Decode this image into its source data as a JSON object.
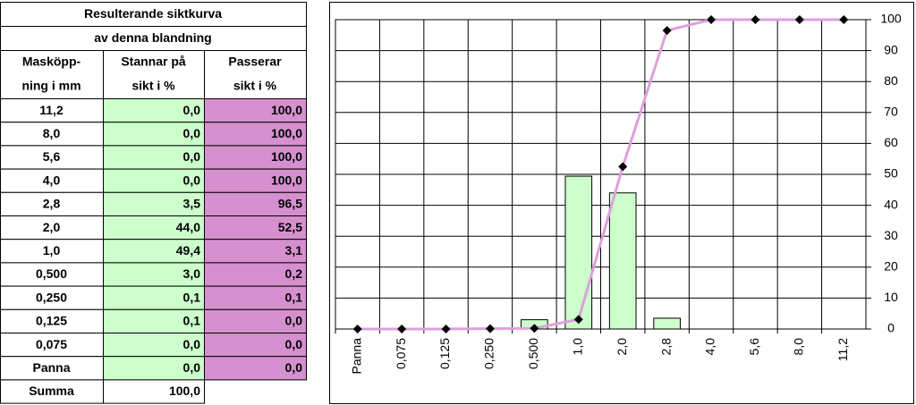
{
  "table": {
    "title": [
      "Resulterande siktkurva",
      "av denna blandning"
    ],
    "header": [
      [
        "Masköpp-",
        "Stannar på",
        "Passerar"
      ],
      [
        "ning i mm",
        "sikt i %",
        "sikt i %"
      ]
    ],
    "rows": [
      [
        "11,2",
        "0,0",
        "100,0"
      ],
      [
        "8,0",
        "0,0",
        "100,0"
      ],
      [
        "5,6",
        "0,0",
        "100,0"
      ],
      [
        "4,0",
        "0,0",
        "100,0"
      ],
      [
        "2,8",
        "3,5",
        "96,5"
      ],
      [
        "2,0",
        "44,0",
        "52,5"
      ],
      [
        "1,0",
        "49,4",
        "3,1"
      ],
      [
        "0,500",
        "3,0",
        "0,2"
      ],
      [
        "0,250",
        "0,1",
        "0,1"
      ],
      [
        "0,125",
        "0,1",
        "0,0"
      ],
      [
        "0,075",
        "0,0",
        "0,0"
      ],
      [
        "Panna",
        "0,0",
        "0,0"
      ]
    ],
    "total": [
      "Summa",
      "100,0"
    ]
  },
  "chart_data": {
    "type": "bar",
    "categories": [
      "Panna",
      "0,075",
      "0,125",
      "0,250",
      "0,500",
      "1,0",
      "2,0",
      "2,8",
      "4,0",
      "5,6",
      "8,0",
      "11,2"
    ],
    "series": [
      {
        "type": "bar",
        "color": "#ccffcc",
        "values": [
          0,
          0,
          0.1,
          0.1,
          3.0,
          49.4,
          44.0,
          3.5,
          0,
          0,
          0,
          0
        ]
      },
      {
        "type": "line",
        "color": "#dda0dd",
        "marker_color": "#000000",
        "values": [
          0,
          0,
          0,
          0.1,
          0.2,
          3.1,
          52.5,
          96.5,
          100,
          100,
          100,
          100
        ]
      }
    ],
    "ylim": [
      0,
      100
    ],
    "yticks": [
      0,
      10,
      20,
      30,
      40,
      50,
      60,
      70,
      80,
      90,
      100
    ],
    "y_axis_side": "right",
    "grid": true
  }
}
